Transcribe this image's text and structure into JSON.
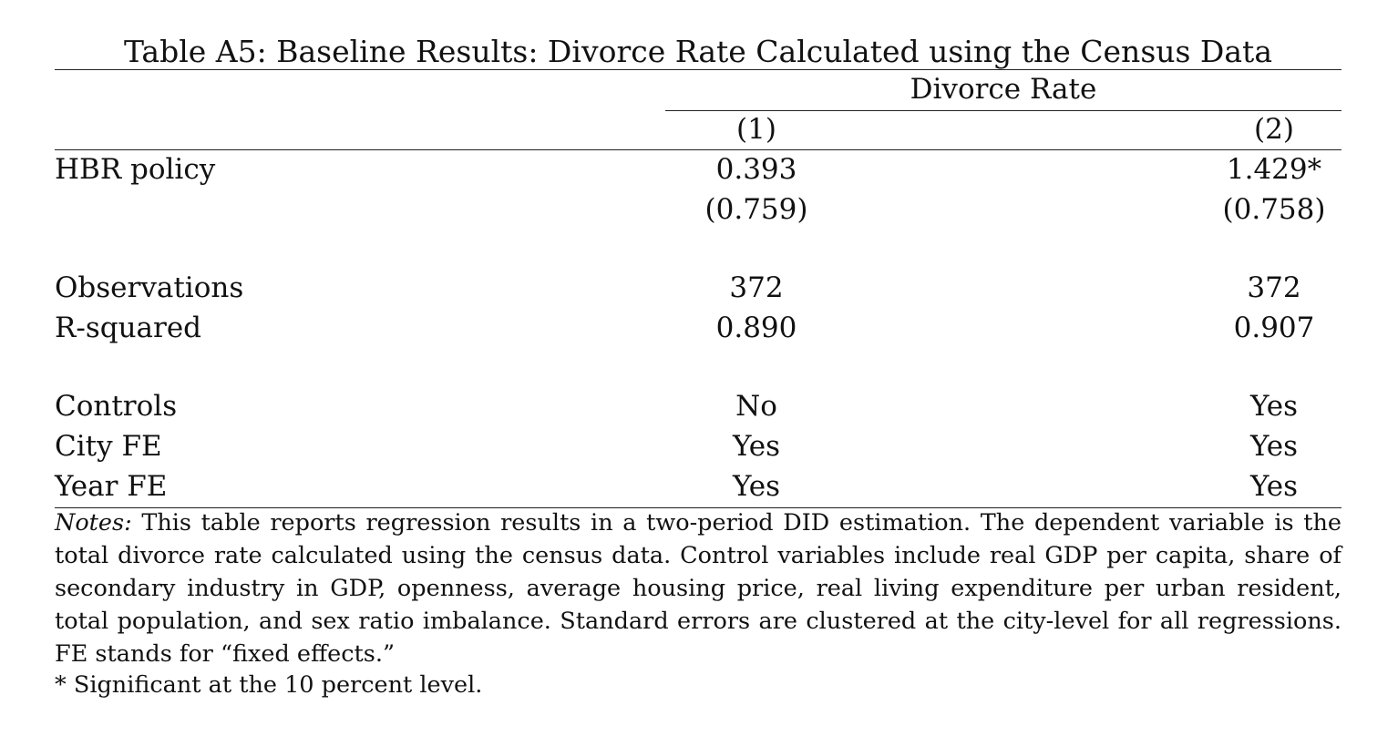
{
  "table": {
    "title": "Table A5: Baseline Results: Divorce Rate Calculated using the Census Data",
    "dependent_variable": "Divorce Rate",
    "columns": [
      "(1)",
      "(2)"
    ],
    "rows": {
      "hbr": {
        "label": "HBR policy",
        "c1": "0.393",
        "c2": "1.429*"
      },
      "hbr_se": {
        "label": "",
        "c1": "(0.759)",
        "c2": "(0.758)"
      },
      "obs": {
        "label": "Observations",
        "c1": "372",
        "c2": "372"
      },
      "r2": {
        "label": "R-squared",
        "c1": "0.890",
        "c2": "0.907"
      },
      "controls": {
        "label": "Controls",
        "c1": "No",
        "c2": "Yes"
      },
      "city_fe": {
        "label": "City FE",
        "c1": "Yes",
        "c2": "Yes"
      },
      "year_fe": {
        "label": "Year FE",
        "c1": "Yes",
        "c2": "Yes"
      }
    },
    "notes_label": "Notes:",
    "notes_text": "This table reports regression results in a two-period DID estimation. The dependent variable is the total divorce rate calculated using the census data. Control variables include real GDP per capita, share of secondary industry in GDP, openness, average housing price, real living expenditure per urban resident, total population, and sex ratio imbalance. Standard errors are clustered at the city-level for all regressions. FE stands for “fixed effects.”",
    "footnote": "* Significant at the 10 percent level."
  }
}
